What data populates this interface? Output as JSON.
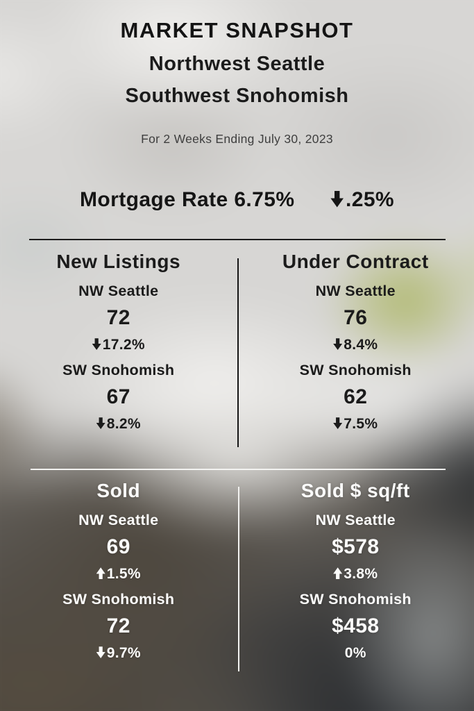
{
  "header": {
    "title": "MARKET SNAPSHOT",
    "region_line1": "Northwest Seattle",
    "region_line2": "Southwest Snohomish",
    "period": "For 2 Weeks Ending July 30, 2023"
  },
  "mortgage": {
    "label": "Mortgage Rate",
    "rate": "6.75%",
    "change": {
      "direction": "down",
      "value": ".25%"
    }
  },
  "sections": {
    "new_listings": {
      "title": "New Listings",
      "areas": [
        {
          "name": "NW Seattle",
          "value": "72",
          "change": {
            "direction": "down",
            "value": "17.2%"
          }
        },
        {
          "name": "SW Snohomish",
          "value": "67",
          "change": {
            "direction": "down",
            "value": "8.2%"
          }
        }
      ]
    },
    "under_contract": {
      "title": "Under Contract",
      "areas": [
        {
          "name": "NW Seattle",
          "value": "76",
          "change": {
            "direction": "down",
            "value": "8.4%"
          }
        },
        {
          "name": "SW Snohomish",
          "value": "62",
          "change": {
            "direction": "down",
            "value": "7.5%"
          }
        }
      ]
    },
    "sold": {
      "title": "Sold",
      "areas": [
        {
          "name": "NW Seattle",
          "value": "69",
          "change": {
            "direction": "up",
            "value": "1.5%"
          }
        },
        {
          "name": "SW Snohomish",
          "value": "72",
          "change": {
            "direction": "down",
            "value": "9.7%"
          }
        }
      ]
    },
    "sold_price_sqft": {
      "title": "Sold $ sq/ft",
      "areas": [
        {
          "name": "NW Seattle",
          "value": "$578",
          "change": {
            "direction": "up",
            "value": "3.8%"
          }
        },
        {
          "name": "SW Snohomish",
          "value": "$458",
          "change": {
            "direction": "none",
            "value": "0%"
          }
        }
      ]
    }
  },
  "colors": {
    "text_dark": "#1b1b1b",
    "text_light": "#fcfcfb",
    "divider_dark": "#1c1c1c",
    "divider_light": "#f3f3f1",
    "background_light": "#d7d6d4",
    "background_dark_brown": "#564d40",
    "background_dark_slate": "#2b2e32",
    "accent_green_blur": "#acb664"
  }
}
